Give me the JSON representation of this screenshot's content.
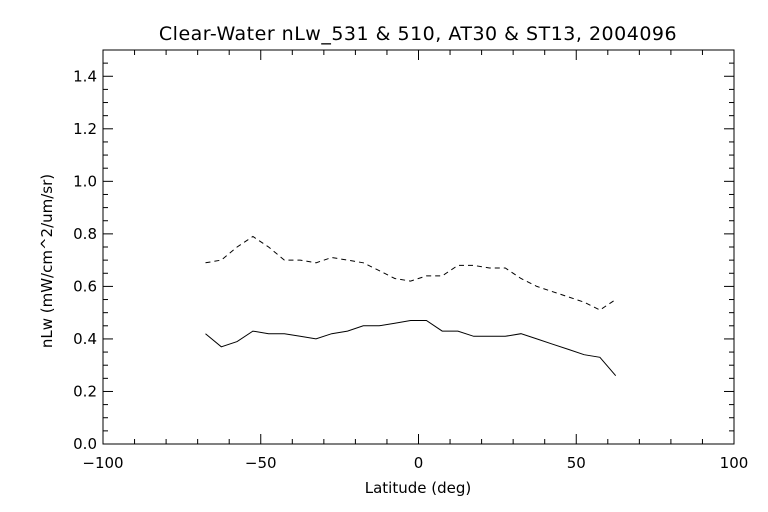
{
  "chart_data": {
    "type": "line",
    "title": "Clear-Water nLw_531 & 510, AT30 & ST13, 2004096",
    "xlabel": "Latitude (deg)",
    "ylabel": "nLw (mW/cm^2/um/sr)",
    "xlim": [
      -100,
      100
    ],
    "ylim": [
      0.0,
      1.5
    ],
    "xticks": [
      -100,
      -50,
      0,
      50,
      100
    ],
    "xtick_labels": [
      "−100",
      "−50",
      "0",
      "50",
      "100"
    ],
    "yticks": [
      0.0,
      0.2,
      0.4,
      0.6,
      0.8,
      1.0,
      1.2,
      1.4
    ],
    "ytick_labels": [
      "0.0",
      "0.2",
      "0.4",
      "0.6",
      "0.8",
      "1.0",
      "1.2",
      "1.4"
    ],
    "grid": false,
    "series": [
      {
        "style": "dashed",
        "color": "#000000",
        "x": [
          -67.5,
          -62.5,
          -57.5,
          -52.5,
          -47.5,
          -42.5,
          -37.5,
          -32.5,
          -27.5,
          -22.5,
          -17.5,
          -12.5,
          -7.5,
          -2.5,
          2.5,
          7.5,
          12.5,
          17.5,
          22.5,
          27.5,
          32.5,
          37.5,
          42.5,
          47.5,
          52.5,
          57.5,
          62.5
        ],
        "y": [
          0.69,
          0.7,
          0.75,
          0.79,
          0.75,
          0.7,
          0.7,
          0.69,
          0.71,
          0.7,
          0.69,
          0.66,
          0.63,
          0.62,
          0.64,
          0.64,
          0.68,
          0.68,
          0.67,
          0.67,
          0.63,
          0.6,
          0.58,
          0.56,
          0.54,
          0.51,
          0.55
        ]
      },
      {
        "style": "solid",
        "color": "#000000",
        "x": [
          -67.5,
          -62.5,
          -57.5,
          -52.5,
          -47.5,
          -42.5,
          -37.5,
          -32.5,
          -27.5,
          -22.5,
          -17.5,
          -12.5,
          -7.5,
          -2.5,
          2.5,
          7.5,
          12.5,
          17.5,
          22.5,
          27.5,
          32.5,
          37.5,
          42.5,
          47.5,
          52.5,
          57.5,
          62.5
        ],
        "y": [
          0.42,
          0.37,
          0.39,
          0.43,
          0.42,
          0.42,
          0.41,
          0.4,
          0.42,
          0.43,
          0.45,
          0.45,
          0.46,
          0.47,
          0.47,
          0.43,
          0.43,
          0.41,
          0.41,
          0.41,
          0.42,
          0.4,
          0.38,
          0.36,
          0.34,
          0.33,
          0.26
        ]
      }
    ]
  }
}
